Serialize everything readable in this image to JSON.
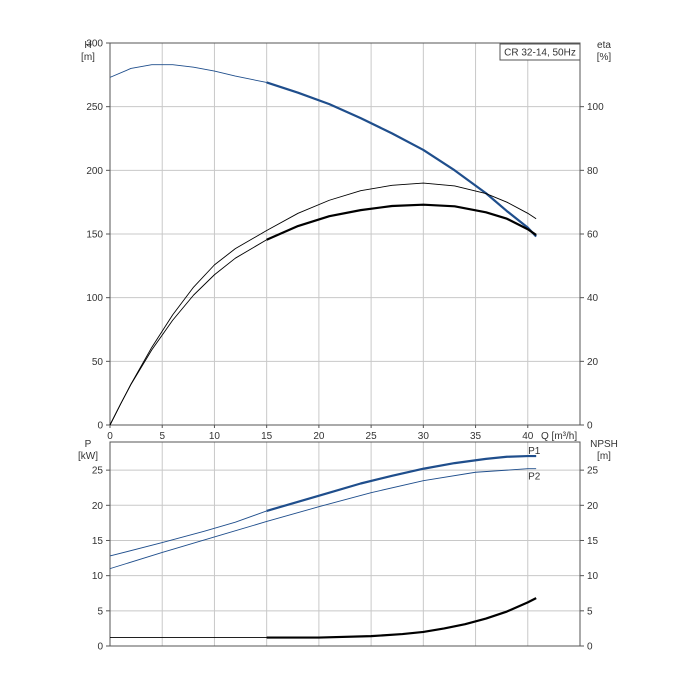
{
  "chart_data": [
    {
      "type": "line",
      "title": "CR 32-14, 50Hz",
      "xlabel": "Q [m³/h]",
      "xlim": [
        0,
        45
      ],
      "x_ticks": [
        "0",
        "5",
        "10",
        "15",
        "20",
        "25",
        "30",
        "35",
        "40"
      ],
      "left_axis": {
        "label_line1": "H",
        "label_line2": "[m]",
        "ylim": [
          0,
          300
        ],
        "ticks": [
          "0",
          "50",
          "100",
          "150",
          "200",
          "250",
          "300"
        ]
      },
      "right_axis": {
        "label_line1": "eta",
        "label_line2": "[%]",
        "ylim": [
          0,
          120
        ],
        "ticks": [
          "0",
          "20",
          "40",
          "60",
          "80",
          "100"
        ]
      },
      "grid": true,
      "series": [
        {
          "axis": "left",
          "color": "#1f4e8c",
          "x": [
            0,
            2,
            4,
            6,
            8,
            10,
            12,
            15,
            18,
            21,
            24,
            27,
            30,
            33,
            36,
            38,
            40,
            40.8
          ],
          "values": [
            273,
            280,
            283,
            283,
            281,
            278,
            274,
            269,
            261,
            252,
            241,
            229,
            216,
            200,
            182,
            168,
            155,
            148
          ],
          "highlight_from": 15
        },
        {
          "axis": "right",
          "color": "#000000",
          "x": [
            0,
            1,
            2,
            4,
            6,
            8,
            10,
            12,
            15,
            18,
            21,
            24,
            27,
            30,
            33,
            36,
            38,
            40,
            40.8
          ],
          "values": [
            0,
            6.5,
            12.7,
            23.6,
            32.9,
            40.8,
            47.2,
            52.4,
            58.2,
            62.5,
            65.6,
            67.5,
            68.8,
            69.2,
            68.7,
            66.8,
            64.8,
            61.5,
            59.7
          ],
          "highlight_from": 15
        },
        {
          "axis": "right",
          "color": "#000000",
          "x": [
            0,
            1,
            2,
            4,
            6,
            8,
            10,
            12,
            15,
            18,
            21,
            24,
            27,
            30,
            33,
            36,
            38,
            40,
            40.8
          ],
          "values": [
            0,
            6.5,
            12.8,
            24.4,
            34.6,
            43.3,
            50.3,
            55.4,
            61.1,
            66.5,
            70.6,
            73.6,
            75.3,
            76.0,
            75.1,
            72.7,
            70.0,
            66.5,
            64.8
          ],
          "highlight_from": 99
        }
      ]
    },
    {
      "type": "line",
      "xlim": [
        0,
        45
      ],
      "left_axis": {
        "label_line1": "P",
        "label_line2": "[kW]",
        "ylim": [
          0,
          29
        ],
        "ticks": [
          "0",
          "5",
          "10",
          "15",
          "20",
          "25"
        ]
      },
      "right_axis": {
        "label_line1": "NPSH",
        "label_line2": "[m]",
        "ylim": [
          0,
          29
        ],
        "ticks": [
          "0",
          "5",
          "10",
          "15",
          "20",
          "25"
        ]
      },
      "grid": true,
      "series": [
        {
          "name": "P1",
          "axis": "left",
          "color": "#1f4e8c",
          "x": [
            0,
            5,
            9,
            12,
            15,
            18,
            21,
            24,
            27,
            30,
            33,
            36,
            38,
            40,
            40.8
          ],
          "values": [
            12.8,
            14.7,
            16.3,
            17.6,
            19.2,
            20.5,
            21.8,
            23.1,
            24.2,
            25.2,
            26.0,
            26.6,
            26.9,
            27.0,
            27.0
          ],
          "highlight_from": 15
        },
        {
          "name": "P2",
          "axis": "left",
          "color": "#1f4e8c",
          "x": [
            0,
            5,
            10,
            15,
            20,
            25,
            30,
            35,
            40,
            40.8
          ],
          "values": [
            11.0,
            13.3,
            15.5,
            17.7,
            19.8,
            21.8,
            23.5,
            24.7,
            25.2,
            25.2
          ],
          "highlight_from": 99
        },
        {
          "axis": "right",
          "color": "#000000",
          "x": [
            0,
            15,
            20,
            25,
            28,
            30,
            32,
            34,
            36,
            38,
            40,
            40.8
          ],
          "values": [
            1.2,
            1.2,
            1.2,
            1.4,
            1.7,
            2.0,
            2.5,
            3.1,
            3.9,
            4.9,
            6.2,
            6.8
          ],
          "highlight_from": 15
        }
      ]
    }
  ]
}
